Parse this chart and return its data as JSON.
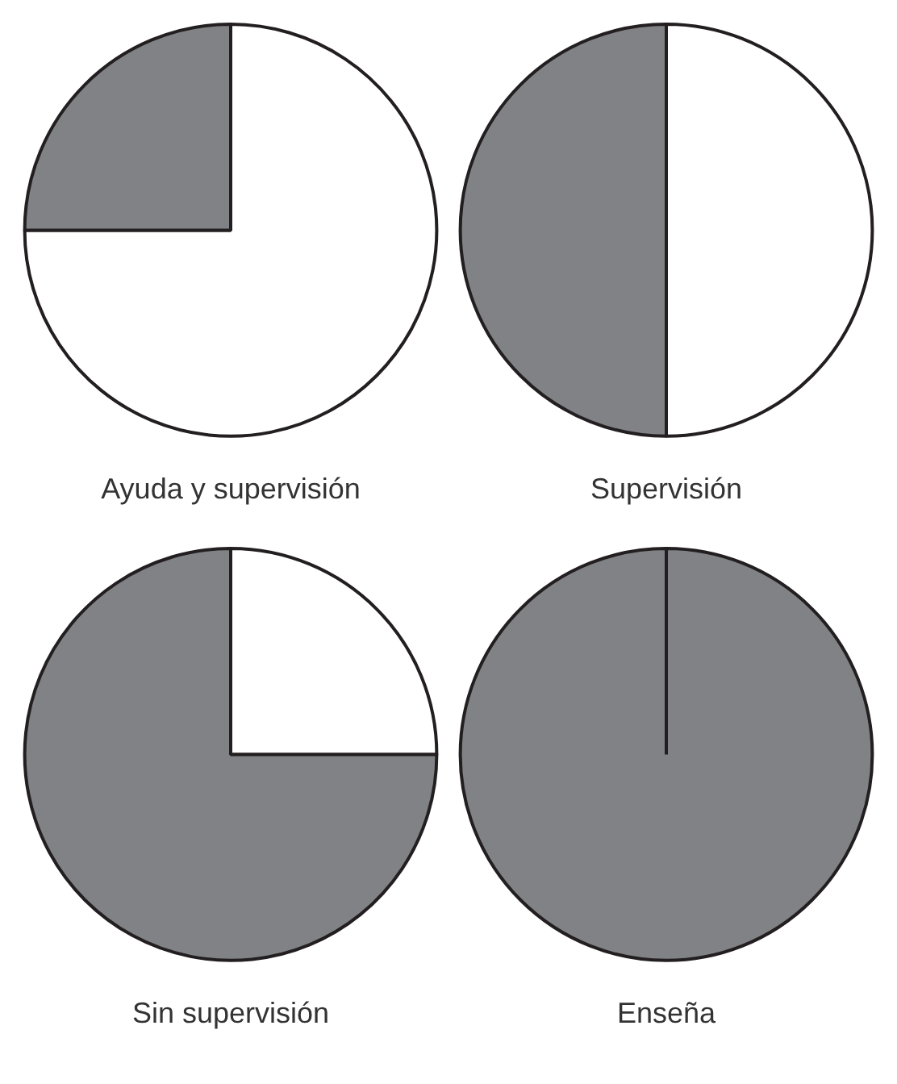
{
  "chart_data": [
    {
      "type": "pie",
      "title": "Ayuda y supervisión",
      "categories": [
        null,
        null
      ],
      "values": [
        75,
        25
      ],
      "colors": [
        "#ffffff",
        "#808285"
      ]
    },
    {
      "type": "pie",
      "title": "Supervisión",
      "categories": [
        null,
        null
      ],
      "values": [
        50,
        50
      ],
      "colors": [
        "#ffffff",
        "#808285"
      ]
    },
    {
      "type": "pie",
      "title": "Sin supervisión",
      "categories": [
        null,
        null
      ],
      "values": [
        25,
        75
      ],
      "colors": [
        "#ffffff",
        "#808285"
      ]
    },
    {
      "type": "pie",
      "title": "Enseña",
      "categories": [
        null
      ],
      "values": [
        100
      ],
      "colors": [
        "#808285"
      ]
    }
  ]
}
